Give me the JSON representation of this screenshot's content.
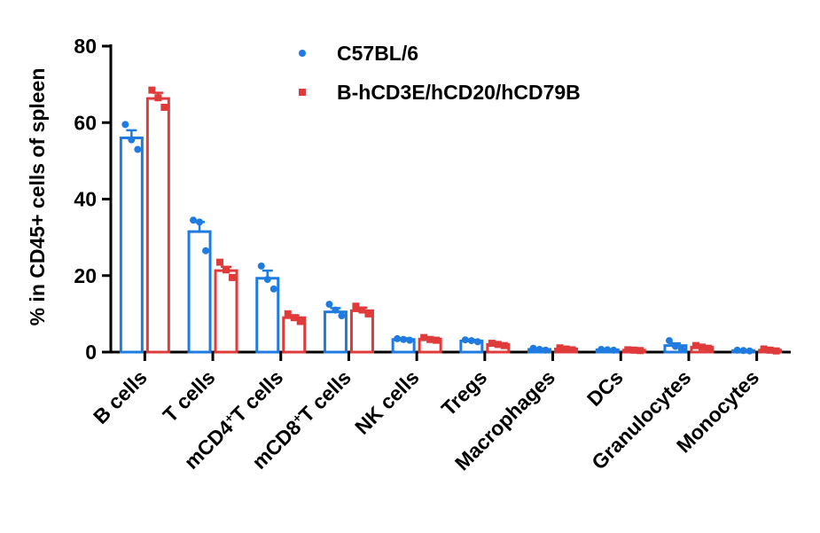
{
  "chart_data": {
    "type": "bar",
    "ylabel": "% in CD45+ cells of spleen",
    "xlabel": "",
    "ylim": [
      0,
      80
    ],
    "yticks": [
      "0",
      "20",
      "40",
      "60",
      "80"
    ],
    "legend_position": "top-center",
    "categories": [
      {
        "main": "B cells",
        "sup": "",
        "tail": ""
      },
      {
        "main": "T cells",
        "sup": "",
        "tail": ""
      },
      {
        "main": "mCD4",
        "sup": "+",
        "tail": "T cells"
      },
      {
        "main": "mCD8",
        "sup": "+",
        "tail": "T cells"
      },
      {
        "main": "NK cells",
        "sup": "",
        "tail": ""
      },
      {
        "main": "Tregs",
        "sup": "",
        "tail": ""
      },
      {
        "main": "Macrophages",
        "sup": "",
        "tail": ""
      },
      {
        "main": "DCs",
        "sup": "",
        "tail": ""
      },
      {
        "main": "Granulocytes",
        "sup": "",
        "tail": ""
      },
      {
        "main": "Monocytes",
        "sup": "",
        "tail": ""
      }
    ],
    "series": [
      {
        "name": "C57BL/6",
        "color": "#1f7be0",
        "marker": "circle",
        "values": [
          56.0,
          31.5,
          19.3,
          10.5,
          3.3,
          2.9,
          0.7,
          0.6,
          1.7,
          0.4
        ],
        "errors": [
          2.0,
          2.5,
          2.0,
          1.0,
          0.3,
          0.3,
          0.2,
          0.1,
          0.6,
          0.1
        ],
        "points": [
          [
            59.5,
            55.5,
            53.0
          ],
          [
            34.5,
            34.0,
            26.5
          ],
          [
            22.5,
            19.0,
            16.5
          ],
          [
            12.5,
            11.0,
            9.5
          ],
          [
            3.5,
            3.3,
            3.1
          ],
          [
            3.2,
            3.0,
            2.7
          ],
          [
            1.0,
            0.7,
            0.5
          ],
          [
            0.7,
            0.6,
            0.5
          ],
          [
            3.0,
            1.5,
            0.7
          ],
          [
            0.5,
            0.4,
            0.3
          ]
        ]
      },
      {
        "name": "B-hCD3E/hCD20/hCD79B",
        "color": "#e03b3b",
        "marker": "square",
        "values": [
          66.3,
          21.3,
          9.0,
          10.8,
          3.4,
          2.0,
          0.8,
          0.5,
          1.3,
          0.5
        ],
        "errors": [
          1.5,
          1.0,
          0.6,
          0.8,
          0.3,
          0.3,
          0.2,
          0.1,
          0.3,
          0.2
        ],
        "points": [
          [
            68.5,
            66.5,
            64.0
          ],
          [
            23.5,
            21.5,
            19.5
          ],
          [
            10.0,
            9.0,
            8.0
          ],
          [
            12.0,
            11.0,
            10.0
          ],
          [
            3.8,
            3.3,
            3.1
          ],
          [
            2.3,
            2.0,
            1.7
          ],
          [
            1.1,
            0.8,
            0.6
          ],
          [
            0.6,
            0.5,
            0.4
          ],
          [
            1.7,
            1.3,
            1.0
          ],
          [
            0.8,
            0.5,
            0.3
          ]
        ]
      }
    ]
  }
}
